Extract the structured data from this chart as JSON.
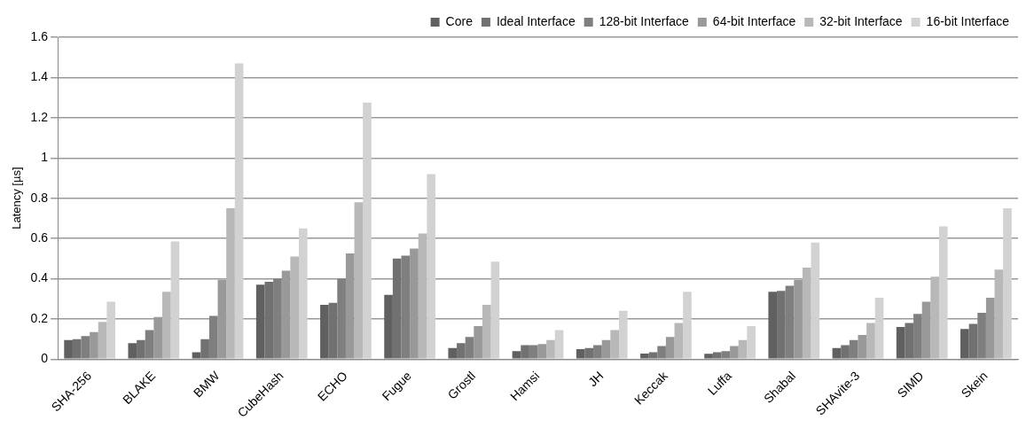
{
  "chart_data": {
    "type": "bar",
    "ylabel": "Latency [µs]",
    "categories": [
      "SHA-256",
      "BLAKE",
      "BMW",
      "CubeHash",
      "ECHO",
      "Fugue",
      "Grostl",
      "Hamsi",
      "JH",
      "Keccak",
      "Luffa",
      "Shabal",
      "SHAvite-3",
      "SIMD",
      "Skein"
    ],
    "series": [
      {
        "name": "Core",
        "color": "#606060",
        "values": [
          0.095,
          0.08,
          0.035,
          0.37,
          0.27,
          0.32,
          0.055,
          0.04,
          0.05,
          0.028,
          0.027,
          0.335,
          0.055,
          0.16,
          0.15
        ]
      },
      {
        "name": "Ideal Interface",
        "color": "#717171",
        "values": [
          0.1,
          0.095,
          0.1,
          0.385,
          0.28,
          0.5,
          0.08,
          0.07,
          0.055,
          0.035,
          0.035,
          0.34,
          0.07,
          0.18,
          0.175
        ]
      },
      {
        "name": "128-bit Interface",
        "color": "#7f7f7f",
        "values": [
          0.115,
          0.145,
          0.215,
          0.4,
          0.4,
          0.515,
          0.11,
          0.07,
          0.07,
          0.065,
          0.04,
          0.365,
          0.095,
          0.225,
          0.23
        ]
      },
      {
        "name": "64-bit Interface",
        "color": "#999999",
        "values": [
          0.135,
          0.21,
          0.395,
          0.44,
          0.525,
          0.55,
          0.165,
          0.075,
          0.095,
          0.11,
          0.065,
          0.395,
          0.12,
          0.285,
          0.305
        ]
      },
      {
        "name": "32-bit Interface",
        "color": "#b8b8b8",
        "values": [
          0.185,
          0.335,
          0.75,
          0.51,
          0.78,
          0.625,
          0.27,
          0.095,
          0.145,
          0.18,
          0.095,
          0.455,
          0.18,
          0.41,
          0.445
        ]
      },
      {
        "name": "16-bit Interface",
        "color": "#d2d2d2",
        "values": [
          0.285,
          0.585,
          1.47,
          0.65,
          1.275,
          0.92,
          0.485,
          0.145,
          0.24,
          0.335,
          0.165,
          0.58,
          0.305,
          0.66,
          0.75
        ]
      }
    ],
    "ylim": [
      0,
      1.6
    ],
    "yticks": [
      0,
      0.2,
      0.4,
      0.6,
      0.8,
      1,
      1.2,
      1.4,
      1.6
    ],
    "grid": "y",
    "legend": "top right"
  }
}
